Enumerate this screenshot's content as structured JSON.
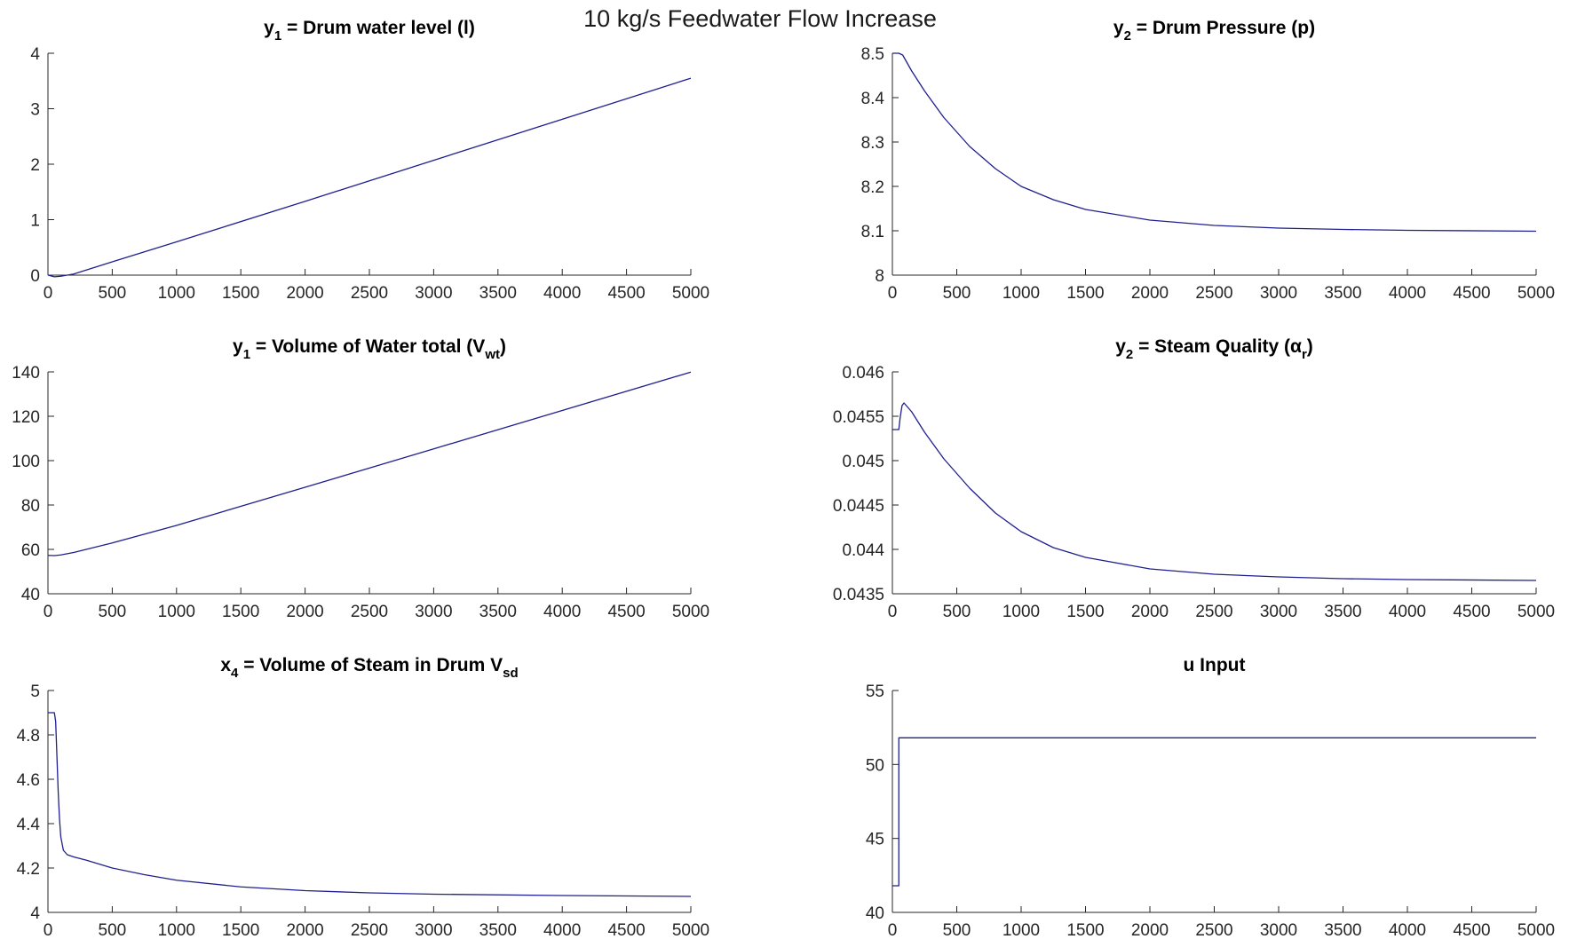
{
  "figure": {
    "suptitle": "10 kg/s Feedwater Flow Increase",
    "line_color": "#1f1f8f"
  },
  "chart_data": [
    {
      "id": "p1",
      "type": "line",
      "title": {
        "main": "y",
        "sub": "1",
        "rest": " = Drum water level (l)"
      },
      "xlim": [
        0,
        5000
      ],
      "ylim": [
        0,
        4
      ],
      "xticks": [
        "0",
        "500",
        "1000",
        "1500",
        "2000",
        "2500",
        "3000",
        "3500",
        "4000",
        "4500",
        "5000"
      ],
      "yticks": [
        "0",
        "1",
        "2",
        "3",
        "4"
      ],
      "x": [
        0,
        50,
        100,
        200,
        500,
        1000,
        2000,
        3000,
        4000,
        5000
      ],
      "y": [
        0.0,
        -0.03,
        -0.02,
        0.02,
        0.24,
        0.6,
        1.33,
        2.07,
        2.81,
        3.55
      ]
    },
    {
      "id": "p2",
      "type": "line",
      "title": {
        "main": "y",
        "sub": "2",
        "rest": " = Drum Pressure (p)"
      },
      "xlim": [
        0,
        5000
      ],
      "ylim": [
        8,
        8.5
      ],
      "xticks": [
        "0",
        "500",
        "1000",
        "1500",
        "2000",
        "2500",
        "3000",
        "3500",
        "4000",
        "4500",
        "5000"
      ],
      "yticks": [
        "8",
        "8.1",
        "8.2",
        "8.3",
        "8.4",
        "8.5"
      ],
      "x": [
        0,
        50,
        80,
        150,
        250,
        400,
        600,
        800,
        1000,
        1250,
        1500,
        2000,
        2500,
        3000,
        3500,
        4000,
        5000
      ],
      "y": [
        8.5,
        8.5,
        8.496,
        8.46,
        8.415,
        8.355,
        8.29,
        8.24,
        8.2,
        8.17,
        8.148,
        8.124,
        8.112,
        8.106,
        8.103,
        8.101,
        8.099
      ]
    },
    {
      "id": "p3",
      "type": "line",
      "title": {
        "main": "y",
        "sub": "1",
        "rest": " = Volume of Water total (V",
        "sub2": "wt",
        "tail": ")"
      },
      "xlim": [
        0,
        5000
      ],
      "ylim": [
        40,
        140
      ],
      "xticks": [
        "0",
        "500",
        "1000",
        "1500",
        "2000",
        "2500",
        "3000",
        "3500",
        "4000",
        "4500",
        "5000"
      ],
      "yticks": [
        "40",
        "60",
        "80",
        "100",
        "120",
        "140"
      ],
      "x": [
        0,
        50,
        100,
        200,
        500,
        1000,
        2000,
        3000,
        4000,
        5000
      ],
      "y": [
        57.3,
        57.2,
        57.5,
        58.6,
        62.9,
        70.8,
        88.0,
        105.3,
        122.6,
        139.9
      ]
    },
    {
      "id": "p4",
      "type": "line",
      "title": {
        "main": "y",
        "sub": "2",
        "rest": " = Steam Quality (α",
        "sub2": "r",
        "tail": ")"
      },
      "xlim": [
        0,
        5000
      ],
      "ylim": [
        0.0435,
        0.046
      ],
      "xticks": [
        "0",
        "500",
        "1000",
        "1500",
        "2000",
        "2500",
        "3000",
        "3500",
        "4000",
        "4500",
        "5000"
      ],
      "yticks": [
        "0.0435",
        "0.044",
        "0.0445",
        "0.045",
        "0.0455",
        "0.046"
      ],
      "x": [
        0,
        50,
        60,
        75,
        90,
        150,
        250,
        400,
        600,
        800,
        1000,
        1250,
        1500,
        2000,
        2500,
        3000,
        3500,
        4000,
        5000
      ],
      "y": [
        0.04535,
        0.04535,
        0.04548,
        0.04562,
        0.04565,
        0.04555,
        0.04532,
        0.04502,
        0.04469,
        0.04441,
        0.0442,
        0.04402,
        0.04391,
        0.04378,
        0.04372,
        0.04369,
        0.04367,
        0.04366,
        0.04365
      ]
    },
    {
      "id": "p5",
      "type": "line",
      "title": {
        "main": "x",
        "sub": "4",
        "rest": " = Volume of Steam in Drum V",
        "sub2": "sd",
        "tail": ""
      },
      "xlim": [
        0,
        5000
      ],
      "ylim": [
        4,
        5
      ],
      "xticks": [
        "0",
        "500",
        "1000",
        "1500",
        "2000",
        "2500",
        "3000",
        "3500",
        "4000",
        "4500",
        "5000"
      ],
      "yticks": [
        "4",
        "4.2",
        "4.4",
        "4.6",
        "4.8",
        "5"
      ],
      "x": [
        0,
        50,
        60,
        70,
        80,
        90,
        100,
        120,
        150,
        200,
        300,
        500,
        750,
        1000,
        1500,
        2000,
        2500,
        3000,
        4000,
        5000
      ],
      "y": [
        4.9,
        4.9,
        4.86,
        4.7,
        4.54,
        4.42,
        4.34,
        4.28,
        4.26,
        4.25,
        4.235,
        4.2,
        4.17,
        4.145,
        4.115,
        4.098,
        4.088,
        4.082,
        4.076,
        4.072
      ]
    },
    {
      "id": "p6",
      "type": "line",
      "title": {
        "main": "u Input",
        "sub": "",
        "rest": ""
      },
      "xlim": [
        0,
        5000
      ],
      "ylim": [
        40,
        55
      ],
      "xticks": [
        "0",
        "500",
        "1000",
        "1500",
        "2000",
        "2500",
        "3000",
        "3500",
        "4000",
        "4500",
        "5000"
      ],
      "yticks": [
        "40",
        "45",
        "50",
        "55"
      ],
      "x": [
        0,
        50,
        50,
        5000
      ],
      "y": [
        41.8,
        41.8,
        51.8,
        51.8
      ]
    }
  ]
}
